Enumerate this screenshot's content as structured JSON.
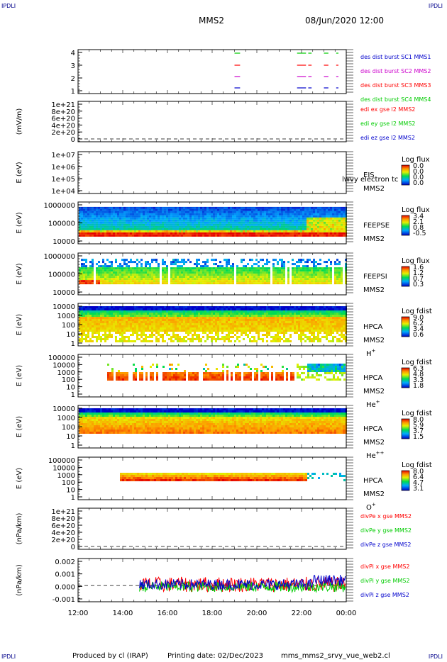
{
  "header": {
    "corner_label": "IPDLI",
    "spacecraft": "MMS2",
    "date_time": "08/Jun/2020 12:00"
  },
  "footer": {
    "produced_by": "Produced by cl (IRAP)",
    "printing_date": "Printing date: 02/Dec/2023",
    "filename": "mms_mms2_srvy_vue_web2.cl"
  },
  "colors": {
    "red": "#ff0000",
    "green": "#00cc00",
    "blue": "#0000cc",
    "magenta": "#cc00cc",
    "darkblue": "#000080"
  },
  "chart_data": [
    {
      "id": "burst",
      "type": "scatter",
      "ylabel": "",
      "ylim": [
        0.5,
        4.5
      ],
      "yticks": [
        "4",
        "3",
        "2",
        "1"
      ],
      "legend": [
        {
          "label": "des dist burst SC1 MMS1",
          "color": "#0000cc"
        },
        {
          "label": "des dist burst SC2 MMS2",
          "color": "#cc00cc"
        },
        {
          "label": "des dist burst SC3 MMS3",
          "color": "#ff0000"
        },
        {
          "label": "des dist burst SC4 MMS4",
          "color": "#00cc00"
        }
      ],
      "segments_hours": [
        [
          19.0,
          19.25
        ],
        [
          21.8,
          22.2
        ],
        [
          22.3,
          22.45
        ],
        [
          23.0,
          23.2
        ],
        [
          23.55,
          23.65
        ]
      ]
    },
    {
      "id": "edi",
      "type": "line",
      "ylabel": "(mV/m)",
      "yticks": [
        "1e+21",
        "8e+20",
        "6e+20",
        "4e+20",
        "2e+20",
        "0"
      ],
      "legend": [
        {
          "label": "edi ex gse l2 MMS2",
          "color": "#ff0000"
        },
        {
          "label": "edi ey gse l2 MMS2",
          "color": "#00cc00"
        },
        {
          "label": "edi ez gse l2 MMS2",
          "color": "#0000cc"
        }
      ]
    },
    {
      "id": "eis",
      "type": "heatmap",
      "ylabel": "E (eV)",
      "yticks": [
        "1e+07",
        "1e+06",
        "1e+05",
        "1e+04"
      ],
      "instrument": "EIS",
      "spacecraft": "MMS2",
      "overlay_text": "lwvy electron tc",
      "colorbar_title": "Log flux",
      "colorbar_ticks": [
        "0.0",
        "0.0",
        "0.0",
        "0.0"
      ]
    },
    {
      "id": "feepse",
      "type": "heatmap",
      "ylabel": "E (eV)",
      "yticks": [
        "1000000",
        "100000",
        "10000"
      ],
      "instrument": "FEEPSE",
      "spacecraft": "MMS2",
      "colorbar_title": "Log flux",
      "colorbar_ticks": [
        "3.4",
        "2.1",
        "0.8",
        "-0.5"
      ]
    },
    {
      "id": "feepsi",
      "type": "heatmap",
      "ylabel": "E (eV)",
      "yticks": [
        "1000000",
        "100000",
        "10000"
      ],
      "instrument": "FEEPSI",
      "spacecraft": "MMS2",
      "colorbar_title": "Log flux",
      "colorbar_ticks": [
        "1.6",
        "1.2",
        "0.7",
        "0.3"
      ]
    },
    {
      "id": "hpca_h",
      "type": "heatmap",
      "ylabel": "E (eV)",
      "yticks": [
        "10000",
        "1000",
        "100",
        "10",
        "1"
      ],
      "instrument": "HPCA",
      "spacecraft": "MMS2",
      "species": "H",
      "species_sup": "+",
      "colorbar_title": "Log fdist",
      "colorbar_ticks": [
        "9.0",
        "6.2",
        "3.4",
        "0.6"
      ]
    },
    {
      "id": "hpca_he",
      "type": "heatmap",
      "ylabel": "E (eV)",
      "yticks": [
        "100000",
        "10000",
        "1000",
        "100",
        "10",
        "1"
      ],
      "instrument": "HPCA",
      "spacecraft": "MMS2",
      "species": "He",
      "species_sup": "+",
      "colorbar_title": "Log fdist",
      "colorbar_ticks": [
        "6.3",
        "4.8",
        "3.3",
        "1.8"
      ]
    },
    {
      "id": "hpca_hepp",
      "type": "heatmap",
      "ylabel": "E (eV)",
      "yticks": [
        "10000",
        "1000",
        "100",
        "10",
        "1"
      ],
      "instrument": "HPCA",
      "spacecraft": "MMS2",
      "species": "He",
      "species_sup": "++",
      "colorbar_title": "Log fdist",
      "colorbar_ticks": [
        "8.0",
        "5.9",
        "3.7",
        "1.5"
      ]
    },
    {
      "id": "hpca_o",
      "type": "heatmap",
      "ylabel": "E (eV)",
      "yticks": [
        "100000",
        "10000",
        "1000",
        "100",
        "10",
        "1"
      ],
      "instrument": "HPCA",
      "spacecraft": "MMS2",
      "species": "O",
      "species_sup": "+",
      "colorbar_title": "Log fdist",
      "colorbar_ticks": [
        "8.0",
        "6.4",
        "4.7",
        "3.1"
      ]
    },
    {
      "id": "dive",
      "type": "line",
      "ylabel": "(nPa/km)",
      "yticks": [
        "1e+21",
        "8e+20",
        "6e+20",
        "4e+20",
        "2e+20",
        "0"
      ],
      "legend": [
        {
          "label": "divPe x gse MMS2",
          "color": "#ff0000"
        },
        {
          "label": "divPe y gse MMS2",
          "color": "#00cc00"
        },
        {
          "label": "divPe z gse MMS2",
          "color": "#0000cc"
        }
      ]
    },
    {
      "id": "divi",
      "type": "line",
      "ylabel": "(nPa/km)",
      "yticks": [
        "0.002",
        "0.001",
        "0.000",
        "-0.001"
      ],
      "ylim": [
        -0.0015,
        0.0025
      ],
      "data_start_hour": 14.75,
      "legend": [
        {
          "label": "divPi x gse MMS2",
          "color": "#ff0000"
        },
        {
          "label": "divPi y gse MMS2",
          "color": "#00cc00"
        },
        {
          "label": "divPi z gse MMS2",
          "color": "#0000cc"
        }
      ]
    }
  ],
  "xaxis": {
    "ticks": [
      "12:00",
      "14:00",
      "16:00",
      "18:00",
      "20:00",
      "22:00",
      "00:00"
    ],
    "start_hour": 12,
    "end_hour": 24
  }
}
